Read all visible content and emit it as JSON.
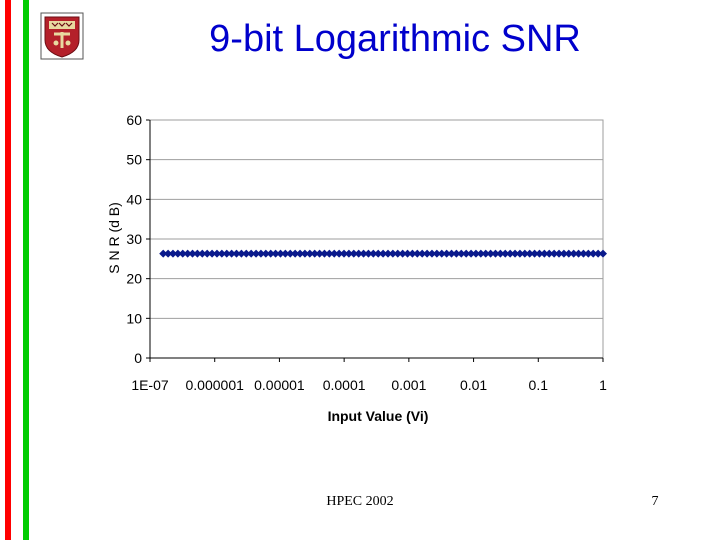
{
  "slide": {
    "title": "9-bit Logarithmic SNR",
    "footer": "HPEC 2002",
    "page_number": "7"
  },
  "colors": {
    "title": "#0000cc",
    "bar_red": "#ff0000",
    "bar_green": "#00cc00",
    "series": "#0a1a8c",
    "grid": "#9e9e9e",
    "logo_shield": "#b4202a"
  },
  "logo": {
    "icon": "university-shield-icon"
  },
  "chart_data": {
    "type": "line",
    "title": "",
    "xlabel": "Input Value (Vi)",
    "ylabel": "S N R (d B)",
    "x_scale": "log",
    "xlim": [
      1e-07,
      1
    ],
    "ylim": [
      0,
      60
    ],
    "x_tick_labels": [
      "1E-07",
      "0.000001",
      "0.00001",
      "0.0001",
      "0.001",
      "0.01",
      "0.1",
      "1"
    ],
    "y_tick_labels": [
      "0",
      "10",
      "20",
      "30",
      "40",
      "50",
      "60"
    ],
    "grid": true,
    "legend": "none",
    "series": [
      {
        "x_range": [
          1.6e-07,
          1
        ],
        "y": 26.3,
        "marker": "diamond"
      }
    ]
  }
}
